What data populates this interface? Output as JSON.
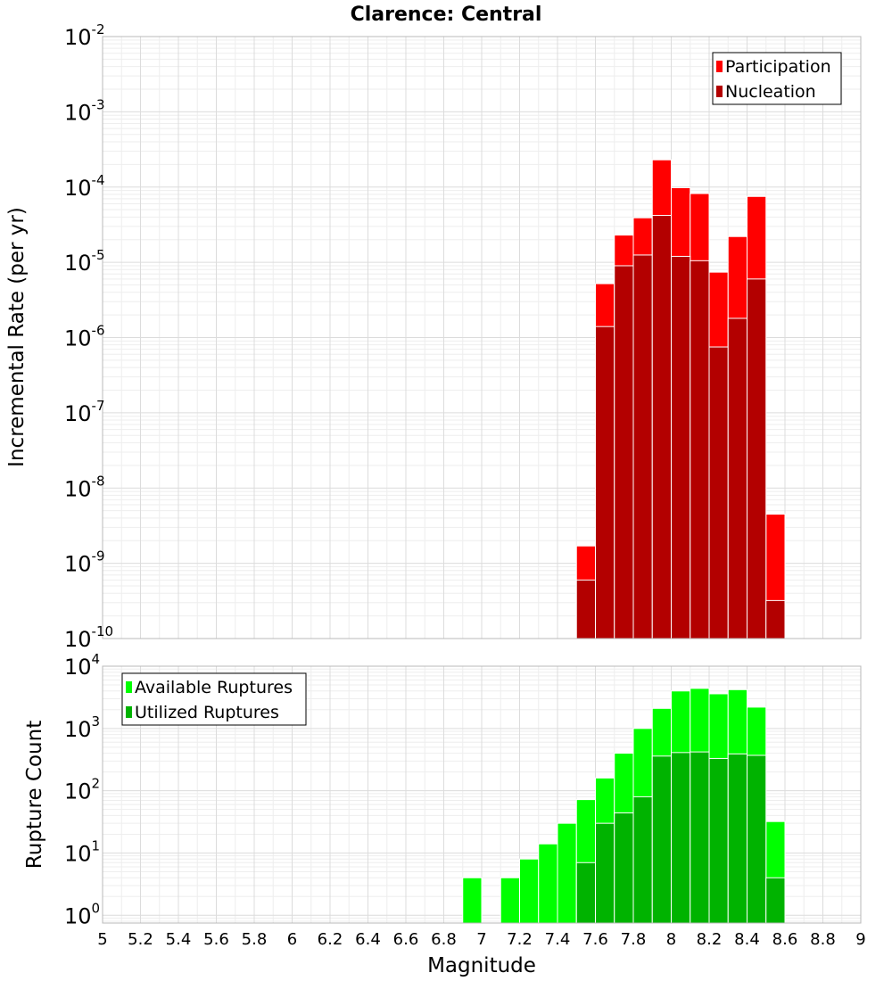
{
  "chart_data": [
    {
      "type": "bar",
      "title": "Clarence: Central",
      "xlabel": "",
      "ylabel": "Incremental Rate (per yr)",
      "y_scale": "log",
      "xlim": [
        5,
        9
      ],
      "ylim": [
        1e-10,
        0.01
      ],
      "y_ticks": [
        {
          "base": "10",
          "exp": "-10",
          "value": 1e-10
        },
        {
          "base": "10",
          "exp": "-9",
          "value": 1e-09
        },
        {
          "base": "10",
          "exp": "-8",
          "value": 1e-08
        },
        {
          "base": "10",
          "exp": "-7",
          "value": 1e-07
        },
        {
          "base": "10",
          "exp": "-6",
          "value": 1e-06
        },
        {
          "base": "10",
          "exp": "-5",
          "value": 1e-05
        },
        {
          "base": "10",
          "exp": "-4",
          "value": 0.0001
        },
        {
          "base": "10",
          "exp": "-3",
          "value": 0.001
        },
        {
          "base": "10",
          "exp": "-2",
          "value": 0.01
        }
      ],
      "legend_position": "top-right",
      "bin_width": 0.1,
      "series": [
        {
          "name": "Participation",
          "color": "#ff0000",
          "x": [
            7.55,
            7.65,
            7.75,
            7.85,
            7.95,
            8.05,
            8.15,
            8.25,
            8.35,
            8.45,
            8.55
          ],
          "values": [
            1.7e-09,
            5.2e-06,
            2.3e-05,
            3.9e-05,
            0.00023,
            9.8e-05,
            8.2e-05,
            7.4e-06,
            2.2e-05,
            7.5e-05,
            4.5e-09
          ]
        },
        {
          "name": "Nucleation",
          "color": "#b30000",
          "x": [
            7.55,
            7.65,
            7.75,
            7.85,
            7.95,
            8.05,
            8.15,
            8.25,
            8.35,
            8.45,
            8.55
          ],
          "values": [
            6e-10,
            1.4e-06,
            9e-06,
            1.25e-05,
            4.2e-05,
            1.2e-05,
            1.05e-05,
            7.5e-07,
            1.8e-06,
            6e-06,
            3.2e-10
          ]
        }
      ]
    },
    {
      "type": "bar",
      "title": "",
      "xlabel": "Magnitude",
      "ylabel": "Rupture Count",
      "y_scale": "log",
      "xlim": [
        5,
        9
      ],
      "ylim": [
        0.75,
        10000
      ],
      "x_ticks": [
        "5",
        "5.2",
        "5.4",
        "5.6",
        "5.8",
        "6",
        "6.2",
        "6.4",
        "6.6",
        "6.8",
        "7",
        "7.2",
        "7.4",
        "7.6",
        "7.8",
        "8",
        "8.2",
        "8.4",
        "8.6",
        "8.8",
        "9"
      ],
      "y_ticks": [
        {
          "base": "10",
          "exp": "0",
          "value": 1
        },
        {
          "base": "10",
          "exp": "1",
          "value": 10
        },
        {
          "base": "10",
          "exp": "2",
          "value": 100
        },
        {
          "base": "10",
          "exp": "3",
          "value": 1000
        },
        {
          "base": "10",
          "exp": "4",
          "value": 10000
        }
      ],
      "legend_position": "top-left",
      "bin_width": 0.1,
      "series": [
        {
          "name": "Available Ruptures",
          "color": "#00ff00",
          "x": [
            6.95,
            7.15,
            7.25,
            7.35,
            7.45,
            7.55,
            7.65,
            7.75,
            7.85,
            7.95,
            8.05,
            8.15,
            8.25,
            8.35,
            8.45,
            8.55
          ],
          "values": [
            4,
            4,
            8,
            14,
            30,
            72,
            160,
            400,
            1000,
            2100,
            4000,
            4400,
            3600,
            4200,
            2200,
            32
          ]
        },
        {
          "name": "Utilized Ruptures",
          "color": "#00b300",
          "x": [
            7.55,
            7.65,
            7.75,
            7.85,
            7.95,
            8.05,
            8.15,
            8.25,
            8.35,
            8.45,
            8.55
          ],
          "values": [
            7,
            30,
            44,
            80,
            360,
            410,
            420,
            330,
            390,
            370,
            4
          ]
        }
      ]
    }
  ]
}
